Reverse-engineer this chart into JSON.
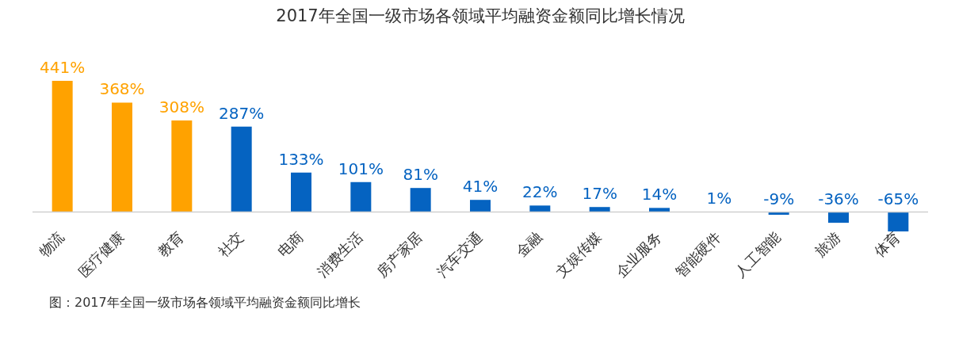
{
  "chart_data": {
    "type": "bar",
    "title": "2017年全国一级市场各领域平均融资金额同比增长情况",
    "categories": [
      "物流",
      "医疗健康",
      "教育",
      "社交",
      "电商",
      "消费生活",
      "房产家居",
      "汽车交通",
      "金融",
      "文娱传媒",
      "企业服务",
      "智能硬件",
      "人工智能",
      "旅游",
      "体育"
    ],
    "values": [
      441,
      368,
      308,
      287,
      133,
      101,
      81,
      41,
      22,
      17,
      14,
      1,
      -9,
      -36,
      -65
    ],
    "value_labels": [
      "441%",
      "368%",
      "308%",
      "287%",
      "133%",
      "101%",
      "81%",
      "41%",
      "22%",
      "17%",
      "14%",
      "1%",
      "-9%",
      "-36%",
      "-65%"
    ],
    "colors": [
      "#ffa200",
      "#ffa200",
      "#ffa200",
      "#0563c1",
      "#0563c1",
      "#0563c1",
      "#0563c1",
      "#0563c1",
      "#0563c1",
      "#0563c1",
      "#0563c1",
      "#0563c1",
      "#0563c1",
      "#0563c1",
      "#0563c1"
    ],
    "annotations": [
      "图：2017年全国一级市场各领域平均融资金额同比增长"
    ]
  }
}
